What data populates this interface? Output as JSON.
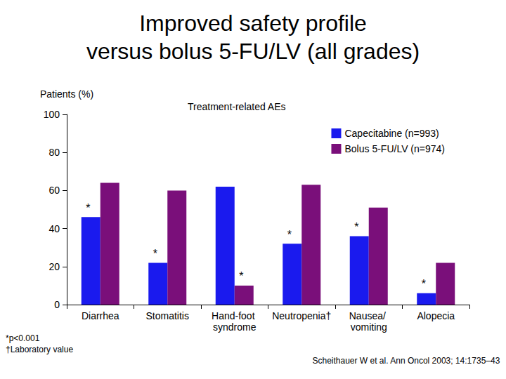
{
  "chart_data": {
    "type": "bar",
    "title": "Improved safety profile\nversus bolus 5-FU/LV (all grades)",
    "subtitle": "Treatment-related AEs",
    "y_label": "Patients (%)",
    "categories": [
      "Diarrhea",
      "Stomatitis",
      "Hand-foot syndrome",
      "Neutropenia†",
      "Nausea/ vomiting",
      "Alopecia"
    ],
    "series": [
      {
        "name": "Capecitabine (n=993)",
        "color": "#1a1aee",
        "values": [
          46,
          22,
          62,
          32,
          36,
          6
        ]
      },
      {
        "name": "Bolus 5-FU/LV (n=974)",
        "color": "#7a0f7a",
        "values": [
          64,
          60,
          10,
          63,
          51,
          22
        ]
      }
    ],
    "annotations": [
      {
        "category": "Diarrhea",
        "series": "Capecitabine (n=993)",
        "text": "*"
      },
      {
        "category": "Stomatitis",
        "series": "Capecitabine (n=993)",
        "text": "*"
      },
      {
        "category": "Hand-foot syndrome",
        "series": "Bolus 5-FU/LV (n=974)",
        "text": "*"
      },
      {
        "category": "Neutropenia†",
        "series": "Capecitabine (n=993)",
        "text": "*"
      },
      {
        "category": "Nausea/ vomiting",
        "series": "Capecitabine (n=993)",
        "text": "*"
      },
      {
        "category": "Alopecia",
        "series": "Capecitabine (n=993)",
        "text": "*"
      }
    ],
    "footnotes": [
      "*p<0.001",
      "†Laboratory value"
    ],
    "source": "Scheithauer W et al. Ann Oncol 2003; 14:1735–43",
    "ylim": [
      0,
      100
    ],
    "yticks": [
      0,
      20,
      40,
      60,
      80,
      100
    ],
    "grid": false,
    "legend": "upper right"
  }
}
